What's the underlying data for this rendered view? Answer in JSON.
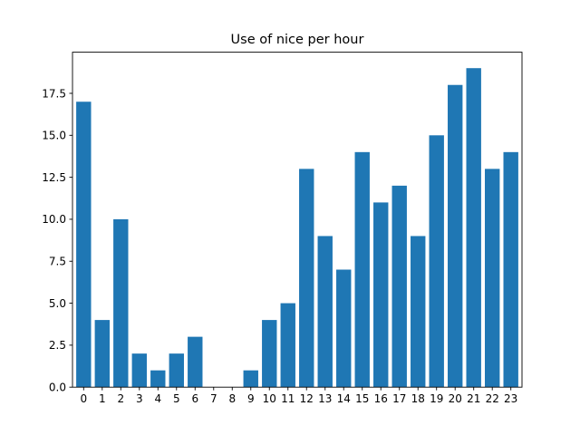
{
  "chart_data": {
    "type": "bar",
    "title": "Use of nice per hour",
    "xlabel": "",
    "ylabel": "",
    "categories": [
      "0",
      "1",
      "2",
      "3",
      "4",
      "5",
      "6",
      "7",
      "8",
      "9",
      "10",
      "11",
      "12",
      "13",
      "14",
      "15",
      "16",
      "17",
      "18",
      "19",
      "20",
      "21",
      "22",
      "23"
    ],
    "values": [
      17,
      4,
      10,
      2,
      1,
      2,
      3,
      0,
      0,
      1,
      4,
      5,
      13,
      9,
      7,
      14,
      11,
      12,
      9,
      15,
      18,
      19,
      13,
      14
    ],
    "ylim": [
      0,
      19.95
    ],
    "yticks": [
      0.0,
      2.5,
      5.0,
      7.5,
      10.0,
      12.5,
      15.0,
      17.5
    ],
    "ytick_labels": [
      "0.0",
      "2.5",
      "5.0",
      "7.5",
      "10.0",
      "12.5",
      "15.0",
      "17.5"
    ],
    "grid": false,
    "legend": "none",
    "bar_color": "#1f77b4"
  }
}
